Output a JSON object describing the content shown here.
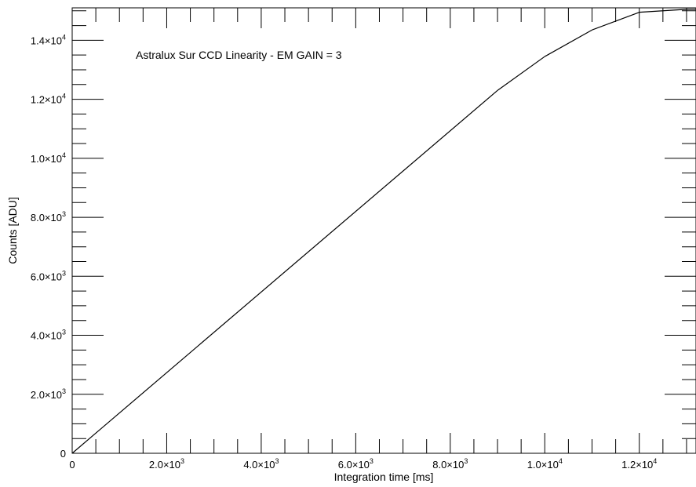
{
  "chart_data": {
    "type": "line",
    "title": "",
    "annotation": "Astralux Sur CCD Linearity - EM GAIN = 3",
    "xlabel": "Integration time [ms]",
    "ylabel": "Counts [ADU]",
    "xlim": [
      0,
      13200
    ],
    "ylim": [
      0,
      15100
    ],
    "x_ticks": [
      {
        "value": 0,
        "label": "0"
      },
      {
        "value": 2000,
        "label": "2.0×10",
        "exp": "3"
      },
      {
        "value": 4000,
        "label": "4.0×10",
        "exp": "3"
      },
      {
        "value": 6000,
        "label": "6.0×10",
        "exp": "3"
      },
      {
        "value": 8000,
        "label": "8.0×10",
        "exp": "3"
      },
      {
        "value": 10000,
        "label": "1.0×10",
        "exp": "4"
      },
      {
        "value": 12000,
        "label": "1.2×10",
        "exp": "4"
      }
    ],
    "y_ticks": [
      {
        "value": 0,
        "label": "0"
      },
      {
        "value": 2000,
        "label": "2.0×10",
        "exp": "3"
      },
      {
        "value": 4000,
        "label": "4.0×10",
        "exp": "3"
      },
      {
        "value": 6000,
        "label": "6.0×10",
        "exp": "3"
      },
      {
        "value": 8000,
        "label": "8.0×10",
        "exp": "3"
      },
      {
        "value": 10000,
        "label": "1.0×10",
        "exp": "4"
      },
      {
        "value": 12000,
        "label": "1.2×10",
        "exp": "4"
      },
      {
        "value": 14000,
        "label": "1.4×10",
        "exp": "4"
      }
    ],
    "x_minor_step": 500,
    "y_minor_step": 500,
    "grid": false,
    "series": [
      {
        "color": "#000000",
        "x": [
          0,
          9000,
          10000,
          11000,
          12000,
          13000,
          13200
        ],
        "y": [
          0,
          12300,
          13450,
          14350,
          14950,
          15050,
          15050
        ]
      }
    ]
  }
}
